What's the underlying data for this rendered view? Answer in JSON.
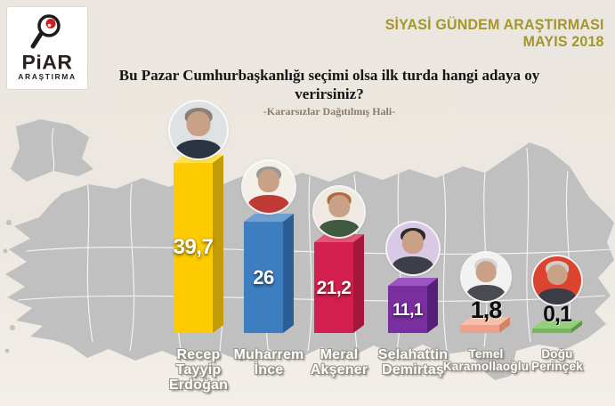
{
  "brand": {
    "name": "PiAR",
    "subname": "ARAŞTIRMA"
  },
  "header": {
    "line1": "SİYASİ GÜNDEM ARAŞTIRMASI",
    "line2": "MAYIS 2018",
    "color": "#A3962C"
  },
  "title": {
    "line1": "Bu Pazar Cumhurbaşkanlığı seçimi olsa ilk turda hangi adaya oy",
    "line2": "verirsiniz?",
    "subtitle": "-Kararsızlar Dağıtılmış Hali-"
  },
  "chart_data": {
    "type": "bar",
    "title": "Bu Pazar Cumhurbaşkanlığı seçimi olsa ilk turda hangi adaya oy verirsiniz?",
    "subtitle": "-Kararsızlar Dağıtılmış Hali-",
    "unit": "%",
    "categories": [
      "Recep Tayyip Erdoğan",
      "Muharrem İnce",
      "Meral Akşener",
      "Selahattin Demirtaş",
      "Temel Karamollaoğlu",
      "Doğu Perinçek"
    ],
    "values": [
      39.7,
      26,
      21.2,
      11.1,
      1.8,
      0.1
    ],
    "value_labels": [
      "39,7",
      "26",
      "21,2",
      "11,1",
      "1,8",
      "0,1"
    ],
    "bar_colors": [
      "#FECB00",
      "#3D7EC1",
      "#D4204E",
      "#7A2FA0",
      "#EFA289",
      "#77B95A"
    ],
    "ylim": [
      0,
      40
    ],
    "grid": false,
    "legend": false,
    "style": "3d-bars-over-turkey-map"
  },
  "candidates": [
    {
      "name": "Recep Tayyip Erdoğan",
      "lines": [
        "Recep",
        "Tayyip",
        "Erdoğan"
      ],
      "value_label": "39,7",
      "front": "#FECB00",
      "topc": "#FFE14D",
      "sidec": "#C29B06",
      "value_style": "inside",
      "photo_bg": "#dfe2e4",
      "suit": "#2b3442",
      "hair": "#8a8078"
    },
    {
      "name": "Muharrem İnce",
      "lines": [
        "Muharrem",
        "İnce"
      ],
      "value_label": "26",
      "front": "#3D7EC1",
      "topc": "#6FA0D4",
      "sidec": "#2A5E96",
      "value_style": "inside",
      "photo_bg": "#f3efe9",
      "suit": "#c03a35",
      "hair": "#9a9a94"
    },
    {
      "name": "Meral Akşener",
      "lines": [
        "Meral",
        "Akşener"
      ],
      "value_label": "21,2",
      "front": "#D4204E",
      "topc": "#E15575",
      "sidec": "#A5163B",
      "value_style": "inside",
      "photo_bg": "#efe9e2",
      "suit": "#3f5a3e",
      "hair": "#b06a3c"
    },
    {
      "name": "Selahattin Demirtaş",
      "lines": [
        "Selahattin",
        "Demirtaş"
      ],
      "value_label": "11,1",
      "front": "#7A2FA0",
      "topc": "#9C55C4",
      "sidec": "#571F77",
      "value_style": "inside",
      "photo_bg": "#d9c9e6",
      "suit": "#3c3f4a",
      "hair": "#2e2a28"
    },
    {
      "name": "Temel Karamollaoğlu",
      "lines": [
        "Temel",
        "Karamollaoğlu"
      ],
      "value_label": "1,8",
      "front": "#EFA289",
      "topc": "#F6BFA9",
      "sidec": "#D08468",
      "value_style": "above",
      "photo_bg": "#f2f2f0",
      "suit": "#494a52",
      "hair": "#d8d6d2"
    },
    {
      "name": "Doğu Perinçek",
      "lines": [
        "Doğu",
        "Perinçek"
      ],
      "value_label": "0,1",
      "front": "#77B95A",
      "topc": "#97CE7D",
      "sidec": "#5E9A45",
      "value_style": "above",
      "photo_bg": "#dd4430",
      "suit": "#3a3d45",
      "hair": "#cfcdc8"
    }
  ]
}
